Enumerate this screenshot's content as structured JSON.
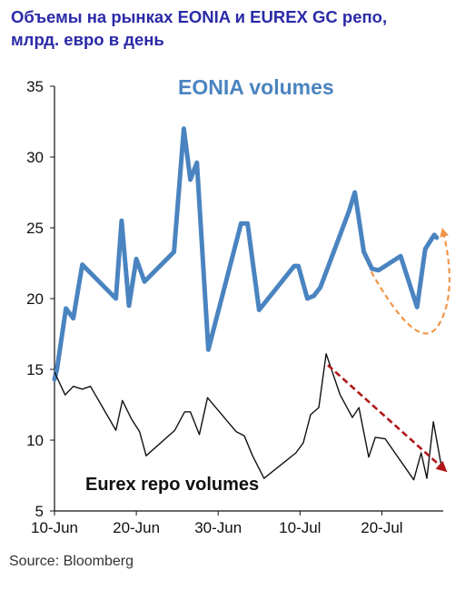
{
  "title_line1": "Объемы на рынках EONIA и EUREX GC репо,",
  "title_line2": "млрд. евро в день",
  "source": "Source: Bloomberg",
  "colors": {
    "title": "#2a2aa8",
    "eonia": "#4a84c0",
    "eurex": "#111111",
    "eonia_arrow": "#f0954a",
    "eurex_arrow": "#b01818"
  },
  "chart_data": {
    "type": "line",
    "title": "Объемы на рынках EONIA и EUREX GC репо, млрд. евро в день",
    "xlabel": "",
    "ylabel": "",
    "ylim": [
      5,
      35
    ],
    "yticks": [
      5,
      10,
      15,
      20,
      25,
      30,
      35
    ],
    "xlim": [
      0,
      47.5
    ],
    "xticks": [
      {
        "x": 0,
        "label": "10-Jun"
      },
      {
        "x": 10,
        "label": "20-Jun"
      },
      {
        "x": 20,
        "label": "30-Jun"
      },
      {
        "x": 30,
        "label": "10-Jul"
      },
      {
        "x": 40,
        "label": "20-Jul"
      }
    ],
    "grid": false,
    "series": [
      {
        "name": "EONIA volumes",
        "color": "#4a84c0",
        "points": [
          [
            0,
            14.3
          ],
          [
            0.3,
            15.0
          ],
          [
            1.4,
            19.3
          ],
          [
            2.3,
            18.6
          ],
          [
            3.4,
            22.4
          ],
          [
            7.5,
            20.0
          ],
          [
            8.2,
            25.5
          ],
          [
            9.1,
            19.5
          ],
          [
            10.0,
            22.8
          ],
          [
            11.0,
            21.2
          ],
          [
            14.6,
            23.3
          ],
          [
            15.8,
            32.0
          ],
          [
            16.6,
            28.4
          ],
          [
            17.4,
            29.6
          ],
          [
            18.8,
            16.4
          ],
          [
            22.8,
            25.3
          ],
          [
            23.6,
            25.3
          ],
          [
            25.0,
            19.2
          ],
          [
            29.3,
            22.3
          ],
          [
            29.8,
            22.3
          ],
          [
            30.9,
            20.0
          ],
          [
            31.7,
            20.2
          ],
          [
            32.5,
            20.8
          ],
          [
            36.0,
            26.2
          ],
          [
            36.7,
            27.5
          ],
          [
            37.8,
            23.3
          ],
          [
            38.8,
            22.1
          ],
          [
            39.6,
            22.0
          ],
          [
            42.3,
            23.0
          ],
          [
            44.3,
            19.4
          ],
          [
            45.3,
            23.5
          ],
          [
            46.4,
            24.5
          ],
          [
            46.7,
            24.3
          ]
        ]
      },
      {
        "name": "Eurex repo volumes",
        "color": "#111111",
        "points": [
          [
            0,
            14.8
          ],
          [
            1.3,
            13.2
          ],
          [
            2.3,
            13.8
          ],
          [
            3.4,
            13.6
          ],
          [
            4.4,
            13.8
          ],
          [
            7.5,
            10.7
          ],
          [
            8.3,
            12.8
          ],
          [
            9.4,
            11.5
          ],
          [
            10.4,
            10.6
          ],
          [
            11.2,
            8.9
          ],
          [
            14.7,
            10.7
          ],
          [
            15.9,
            12.0
          ],
          [
            16.6,
            12.0
          ],
          [
            17.7,
            10.4
          ],
          [
            18.7,
            13.0
          ],
          [
            22.2,
            10.6
          ],
          [
            23.2,
            10.3
          ],
          [
            24.2,
            8.9
          ],
          [
            25.6,
            7.3
          ],
          [
            29.5,
            9.1
          ],
          [
            30.4,
            9.8
          ],
          [
            31.3,
            11.8
          ],
          [
            32.3,
            12.3
          ],
          [
            33.2,
            16.1
          ],
          [
            34.9,
            13.2
          ],
          [
            36.4,
            11.6
          ],
          [
            37.2,
            12.3
          ],
          [
            38.4,
            8.8
          ],
          [
            39.2,
            10.2
          ],
          [
            40.4,
            10.1
          ],
          [
            43.9,
            7.2
          ],
          [
            44.8,
            9.1
          ],
          [
            45.5,
            7.3
          ],
          [
            46.3,
            11.3
          ],
          [
            47.2,
            8.4
          ]
        ]
      }
    ],
    "annotations": [
      {
        "type": "trend-arrow",
        "series": "EONIA volumes",
        "color": "#f0954a",
        "style": "dashed",
        "from": [
          38.7,
          21.9
        ],
        "via": [
          44.6,
          17.5
        ],
        "to": [
          47.5,
          24.7
        ]
      },
      {
        "type": "trend-arrow",
        "series": "Eurex repo volumes",
        "color": "#b01818",
        "style": "dashed",
        "from": [
          33.4,
          15.3
        ],
        "to": [
          47.5,
          8.0
        ]
      }
    ]
  }
}
